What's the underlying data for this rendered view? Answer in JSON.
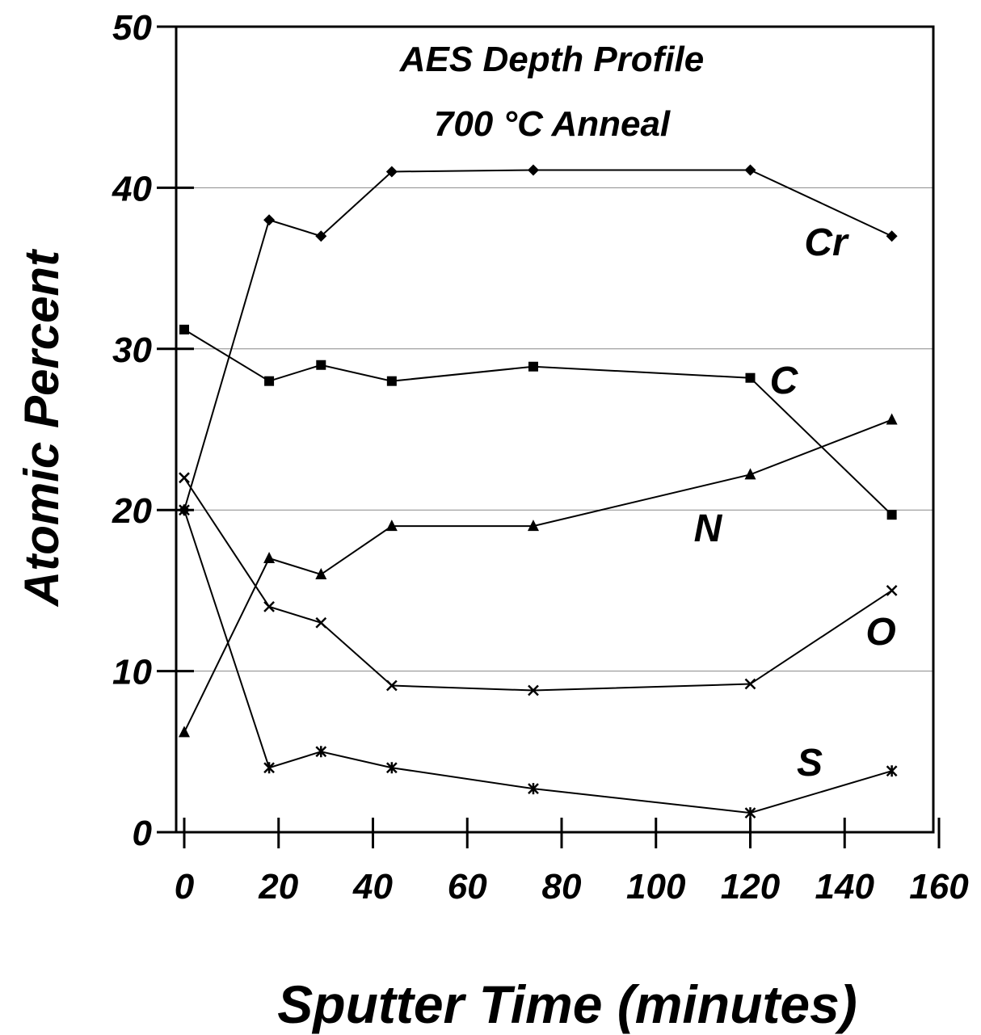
{
  "chart_data": {
    "type": "line",
    "title_lines": [
      "AES Depth Profile",
      "700 °C Anneal"
    ],
    "xlabel": "Sputter Time (minutes)",
    "ylabel": "Atomic Percent",
    "xlim": [
      0,
      160
    ],
    "ylim": [
      0,
      50
    ],
    "xticks": [
      "0",
      "20",
      "40",
      "60",
      "80",
      "100",
      "120",
      "140",
      "160"
    ],
    "yticks": [
      "0",
      "10",
      "20",
      "30",
      "40",
      "50"
    ],
    "grid": "horizontal",
    "x": [
      0,
      18,
      29,
      44,
      74,
      120,
      150
    ],
    "series": [
      {
        "name": "Cr",
        "marker": "diamond",
        "values": [
          20,
          38,
          37,
          41,
          41.1,
          41.1,
          37
        ]
      },
      {
        "name": "C",
        "marker": "square",
        "values": [
          31.2,
          28,
          29,
          28,
          28.9,
          28.2,
          19.7
        ]
      },
      {
        "name": "N",
        "marker": "triangle",
        "values": [
          6.2,
          17,
          16,
          19,
          19,
          22.2,
          25.6
        ]
      },
      {
        "name": "O",
        "marker": "x",
        "values": [
          22,
          14,
          13,
          9.1,
          8.8,
          9.2,
          15
        ]
      },
      {
        "name": "S",
        "marker": "star",
        "values": [
          20,
          4,
          5,
          4,
          2.7,
          1.2,
          3.8
        ]
      }
    ]
  }
}
